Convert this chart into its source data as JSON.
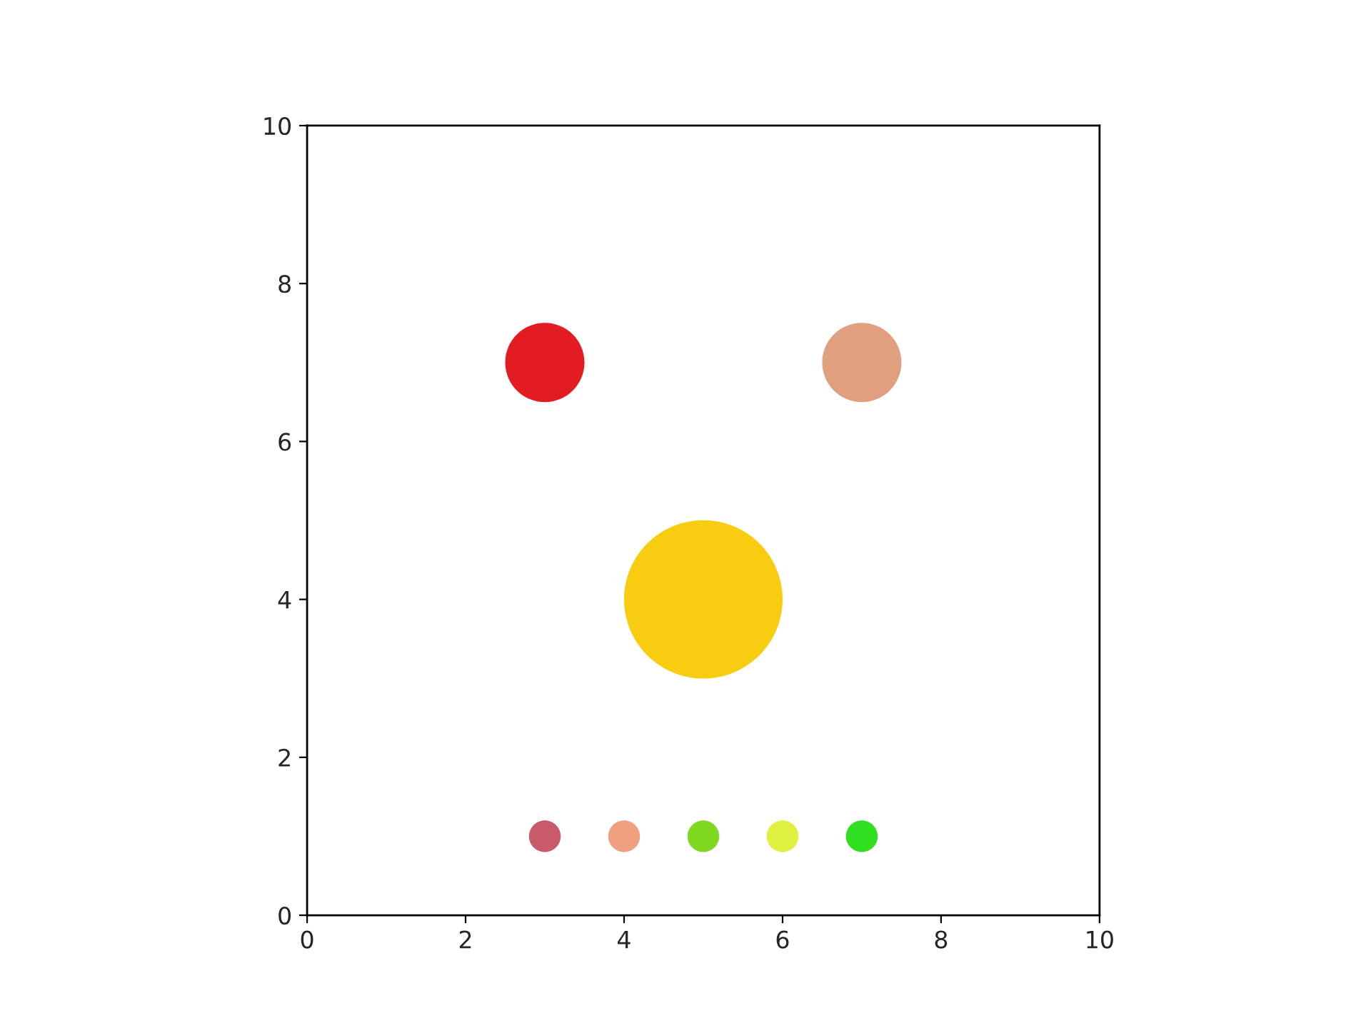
{
  "chart_data": {
    "type": "bubble",
    "x": [
      3,
      7,
      5,
      3,
      4,
      5,
      6,
      7
    ],
    "values": [
      7,
      7,
      4,
      1,
      1,
      1,
      1,
      1
    ],
    "sizes": [
      0.25,
      0.25,
      1,
      0.04,
      0.04,
      0.04,
      0.04,
      0.04
    ],
    "colors": [
      "#e31b23",
      "#e0a080",
      "#f8cc10",
      "#c85a6a",
      "#eea080",
      "#80d820",
      "#e0f040",
      "#30e020"
    ],
    "xlim": [
      0,
      10
    ],
    "ylim": [
      0,
      10
    ],
    "xticks": [
      0,
      2,
      4,
      6,
      8,
      10
    ],
    "yticks": [
      0,
      2,
      4,
      6,
      8,
      10
    ],
    "grid": false,
    "legend": false
  }
}
